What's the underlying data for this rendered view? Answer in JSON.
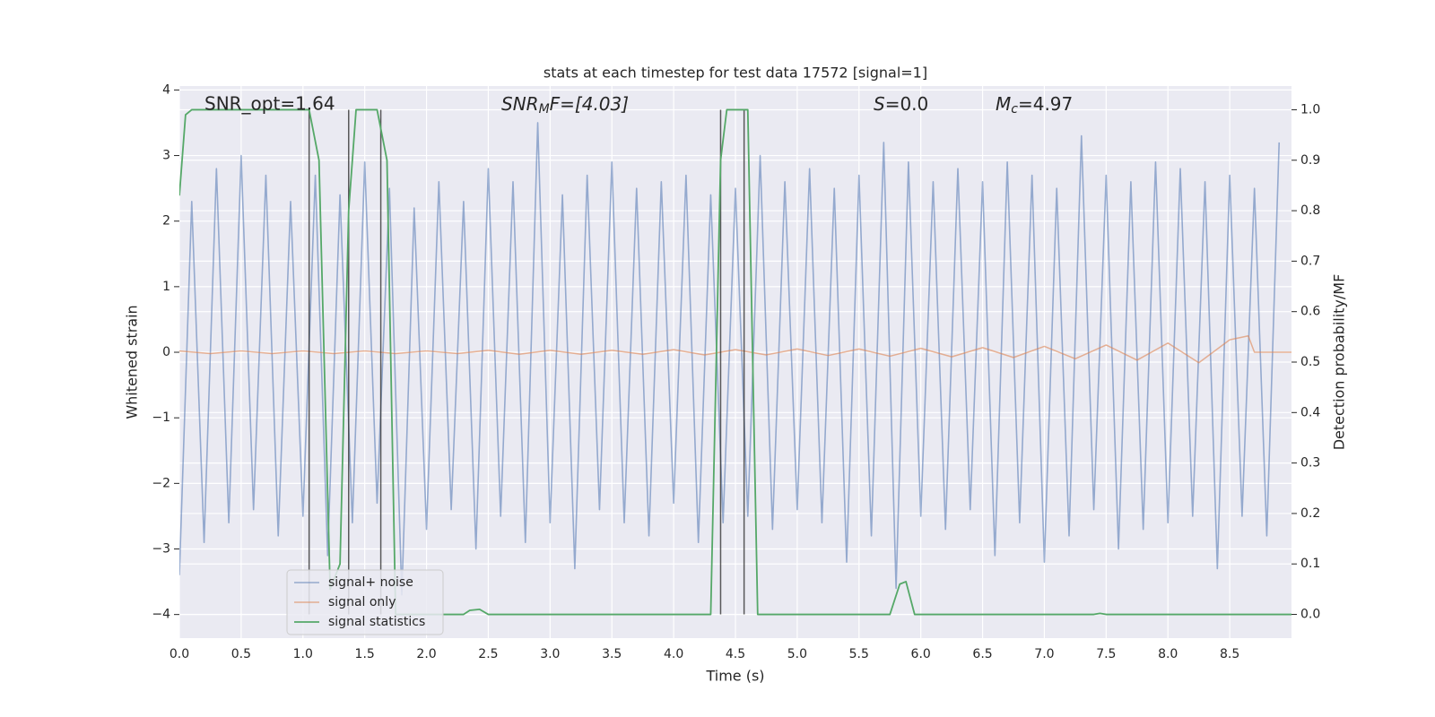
{
  "chart_data": {
    "type": "line",
    "title": "stats at each timestep for test data 17572 [signal=1]",
    "x_label": "Time (s)",
    "y_label": "Whitened strain",
    "y2_label": "Detection probability/MF",
    "annotations": [
      {
        "text": "SNR_opt=1.64"
      },
      {
        "main": "SNR",
        "sub": "M",
        "rest": "F=[4.03]"
      },
      {
        "main": "S",
        "rest": "=0.0"
      },
      {
        "main": "M",
        "sub": "c",
        "rest": "=4.97"
      }
    ],
    "xlim": [
      0,
      9.0
    ],
    "ylim": [
      -4.36,
      4.06
    ],
    "y2lim": [
      -0.047,
      1.047
    ],
    "xticks": [
      {
        "value": 0,
        "label": "0.0"
      },
      {
        "value": 0.5,
        "label": "0.5"
      },
      {
        "value": 1,
        "label": "1.0"
      },
      {
        "value": 1.5,
        "label": "1.5"
      },
      {
        "value": 2,
        "label": "2.0"
      },
      {
        "value": 2.5,
        "label": "2.5"
      },
      {
        "value": 3,
        "label": "3.0"
      },
      {
        "value": 3.5,
        "label": "3.5"
      },
      {
        "value": 4,
        "label": "4.0"
      },
      {
        "value": 4.5,
        "label": "4.5"
      },
      {
        "value": 5,
        "label": "5.0"
      },
      {
        "value": 5.5,
        "label": "5.5"
      },
      {
        "value": 6,
        "label": "6.0"
      },
      {
        "value": 6.5,
        "label": "6.5"
      },
      {
        "value": 7,
        "label": "7.0"
      },
      {
        "value": 7.5,
        "label": "7.5"
      },
      {
        "value": 8,
        "label": "8.0"
      },
      {
        "value": 8.5,
        "label": "8.5"
      }
    ],
    "yticks": [
      {
        "value": -4,
        "label": "−4"
      },
      {
        "value": -3,
        "label": "−3"
      },
      {
        "value": -2,
        "label": "−2"
      },
      {
        "value": -1,
        "label": "−1"
      },
      0,
      1,
      2,
      3,
      4
    ],
    "y2ticks": [
      {
        "value": 0,
        "label": "0.0"
      },
      {
        "value": 0.1,
        "label": "0.1"
      },
      {
        "value": 0.2,
        "label": "0.2"
      },
      {
        "value": 0.3,
        "label": "0.3"
      },
      {
        "value": 0.4,
        "label": "0.4"
      },
      {
        "value": 0.5,
        "label": "0.5"
      },
      {
        "value": 0.6,
        "label": "0.6"
      },
      {
        "value": 0.7,
        "label": "0.7"
      },
      {
        "value": 0.8,
        "label": "0.8"
      },
      {
        "value": 0.9,
        "label": "0.9"
      },
      {
        "value": 1,
        "label": "1.0"
      }
    ],
    "grid": true,
    "legend": "lower left",
    "vlines": {
      "x": [
        1.05,
        1.37,
        1.63,
        4.38,
        4.57
      ],
      "ymin": 0,
      "ymax": 1,
      "color": "#333333"
    },
    "series": [
      {
        "name": "signal+ noise",
        "color": "#4c72b0",
        "axis": "y",
        "x": [
          0,
          0.1,
          0.2,
          0.3,
          0.4,
          0.5,
          0.6,
          0.7,
          0.8,
          0.9,
          1,
          1.1,
          1.2,
          1.3,
          1.4,
          1.5,
          1.6,
          1.7,
          1.8,
          1.9,
          2,
          2.1,
          2.2,
          2.3,
          2.4,
          2.5,
          2.6,
          2.7,
          2.8,
          2.9,
          3,
          3.1,
          3.2,
          3.3,
          3.4,
          3.5,
          3.6,
          3.7,
          3.8,
          3.9,
          4,
          4.1,
          4.2,
          4.3,
          4.4,
          4.5,
          4.6,
          4.7,
          4.8,
          4.9,
          5,
          5.1,
          5.2,
          5.3,
          5.4,
          5.5,
          5.6,
          5.7,
          5.8,
          5.9,
          6,
          6.1,
          6.2,
          6.3,
          6.4,
          6.5,
          6.6,
          6.7,
          6.8,
          6.9,
          7,
          7.1,
          7.2,
          7.3,
          7.4,
          7.5,
          7.6,
          7.7,
          7.8,
          7.9,
          8,
          8.1,
          8.2,
          8.3,
          8.4,
          8.5,
          8.6,
          8.7,
          8.8,
          8.9
        ],
        "values": [
          -3.4,
          2.3,
          -2.9,
          2.8,
          -2.6,
          3.0,
          -2.4,
          2.7,
          -2.8,
          2.3,
          -2.5,
          2.7,
          -3.1,
          2.4,
          -2.6,
          2.9,
          -2.3,
          2.5,
          -3.7,
          2.2,
          -2.7,
          2.6,
          -2.4,
          2.3,
          -3.0,
          2.8,
          -2.5,
          2.6,
          -2.9,
          3.5,
          -2.6,
          2.4,
          -3.3,
          2.7,
          -2.4,
          2.9,
          -2.6,
          2.5,
          -2.8,
          2.6,
          -2.3,
          2.7,
          -2.9,
          2.4,
          -2.6,
          2.5,
          -2.5,
          3.0,
          -2.7,
          2.6,
          -2.4,
          2.8,
          -2.6,
          2.5,
          -3.2,
          2.7,
          -2.8,
          3.2,
          -3.6,
          2.9,
          -2.5,
          2.6,
          -2.7,
          2.8,
          -2.4,
          2.6,
          -3.1,
          2.9,
          -2.6,
          2.7,
          -3.2,
          2.5,
          -2.8,
          3.3,
          -2.4,
          2.7,
          -3.0,
          2.6,
          -2.7,
          2.9,
          -2.6,
          2.8,
          -2.5,
          2.6,
          -3.3,
          2.7,
          -2.5,
          2.5,
          -2.8,
          3.2
        ]
      },
      {
        "name": "signal only",
        "color": "#dd8452",
        "axis": "y",
        "x": [
          0,
          0.25,
          0.5,
          0.75,
          1,
          1.25,
          1.5,
          1.75,
          2,
          2.25,
          2.5,
          2.75,
          3,
          3.25,
          3.5,
          3.75,
          4,
          4.25,
          4.5,
          4.75,
          5,
          5.25,
          5.5,
          5.75,
          6,
          6.25,
          6.5,
          6.75,
          7,
          7.25,
          7.5,
          7.75,
          8,
          8.25,
          8.5,
          8.65,
          8.7,
          9.0
        ],
        "values": [
          0.02,
          -0.02,
          0.02,
          -0.02,
          0.02,
          -0.02,
          0.02,
          -0.02,
          0.02,
          -0.02,
          0.03,
          -0.03,
          0.03,
          -0.03,
          0.03,
          -0.03,
          0.04,
          -0.04,
          0.04,
          -0.04,
          0.05,
          -0.05,
          0.05,
          -0.06,
          0.06,
          -0.07,
          0.07,
          -0.08,
          0.09,
          -0.1,
          0.11,
          -0.12,
          0.14,
          -0.16,
          0.19,
          0.25,
          0,
          0
        ]
      },
      {
        "name": "signal statistics",
        "color": "#55a868",
        "axis": "y2",
        "x": [
          0,
          0.05,
          0.1,
          1.05,
          1.13,
          1.22,
          1.3,
          1.37,
          1.43,
          1.6,
          1.68,
          1.75,
          2.3,
          2.35,
          2.43,
          2.5,
          4.3,
          4.38,
          4.43,
          4.6,
          4.68,
          5.75,
          5.83,
          5.88,
          5.95,
          7.4,
          7.45,
          7.5,
          9.0
        ],
        "values": [
          0.83,
          0.99,
          1.0,
          1.0,
          0.9,
          0.05,
          0.1,
          0.8,
          1.0,
          1.0,
          0.9,
          0.0,
          0.0,
          0.008,
          0.01,
          0.0,
          0.0,
          0.9,
          1.0,
          1.0,
          0.0,
          0.0,
          0.06,
          0.065,
          0.0,
          0.0,
          0.002,
          0.0,
          0.0
        ]
      }
    ]
  }
}
